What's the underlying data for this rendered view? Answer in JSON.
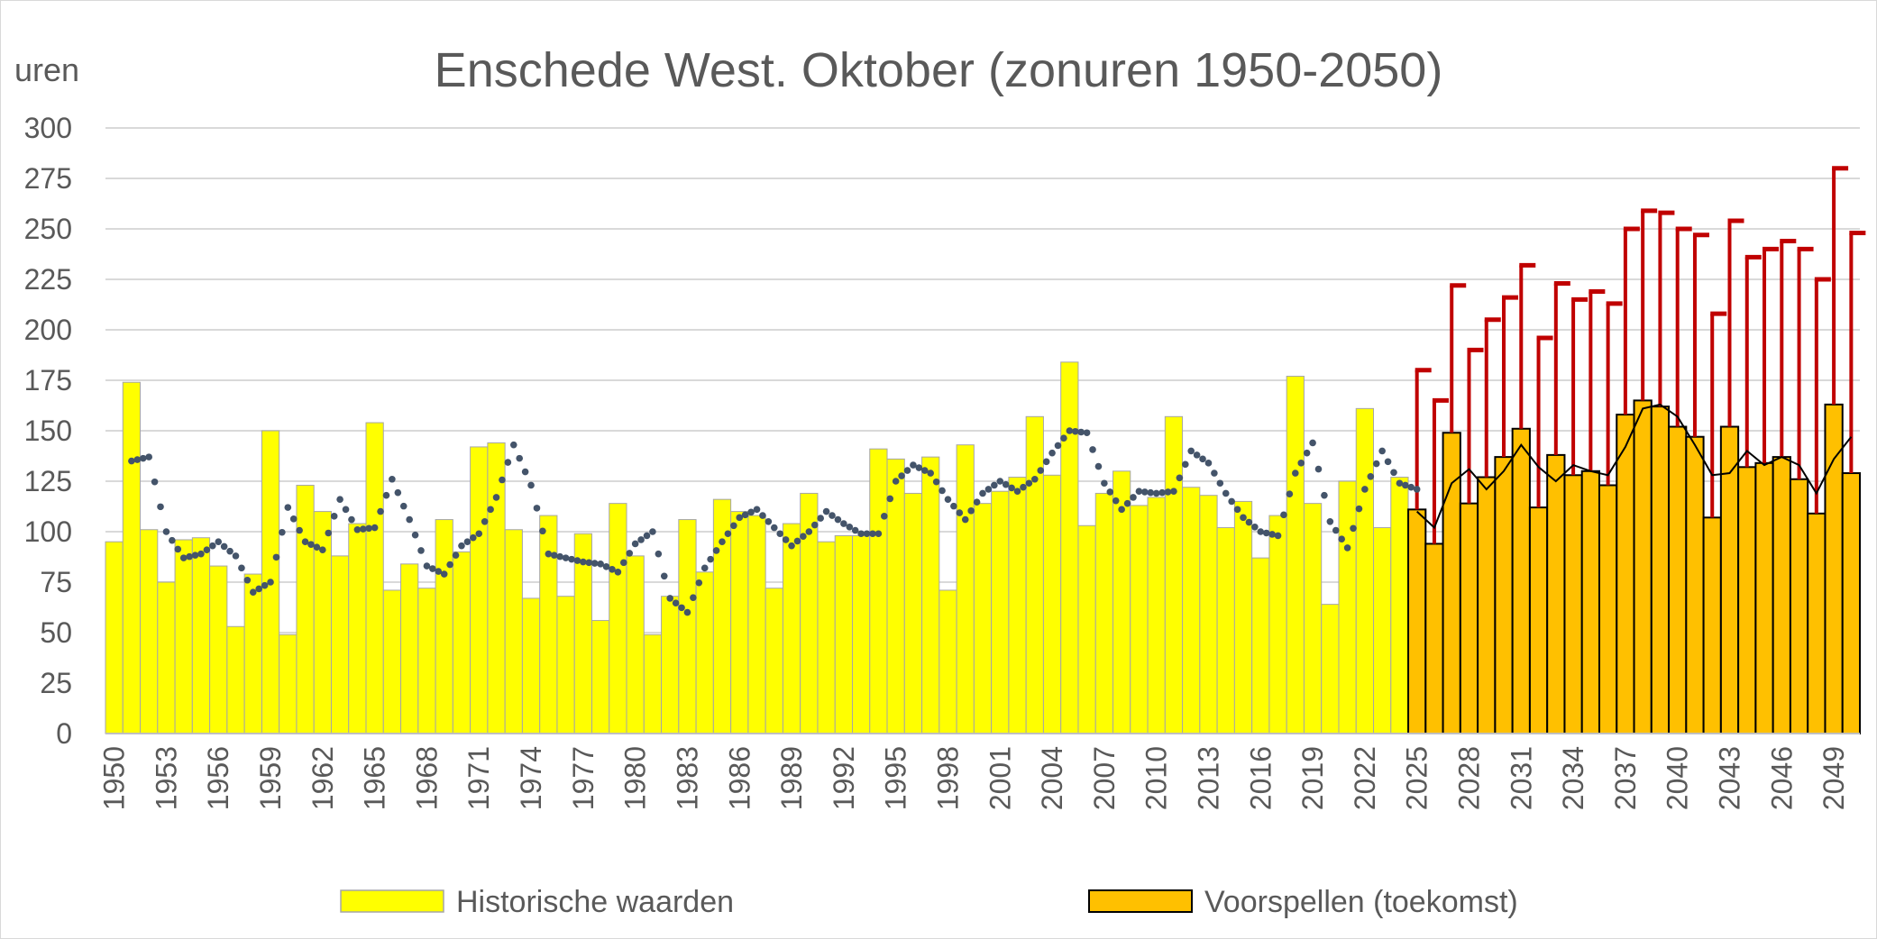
{
  "chart_data": {
    "type": "bar",
    "title": "Enschede West. Oktober (zonuren 1950-2050)",
    "ylabel": "uren",
    "ylim": [
      0,
      300
    ],
    "yticks": [
      0,
      25,
      50,
      75,
      100,
      125,
      150,
      175,
      200,
      225,
      250,
      275,
      300
    ],
    "xtick_labels": [
      "1950",
      "1953",
      "1956",
      "1959",
      "1962",
      "1965",
      "1968",
      "1971",
      "1974",
      "1977",
      "1980",
      "1983",
      "1986",
      "1989",
      "1992",
      "1995",
      "1998",
      "2001",
      "2004",
      "2007",
      "2010",
      "2013",
      "2016",
      "2019",
      "2022",
      "2025",
      "2028",
      "2031",
      "2034",
      "2037",
      "2040",
      "2043",
      "2046",
      "2049"
    ],
    "grid": true,
    "legend_position": "bottom",
    "colors": {
      "historical": "#ffff00",
      "forecast": "#ffc000",
      "error": "#c00000",
      "dots": "#44546a",
      "forecast_line": "#000000",
      "grid": "#d9d9d9",
      "text": "#595959"
    },
    "series": [
      {
        "name": "Historische waarden",
        "x_start": 1950,
        "values": [
          95,
          174,
          101,
          75,
          96,
          97,
          83,
          53,
          79,
          150,
          49,
          123,
          110,
          88,
          104,
          154,
          71,
          84,
          72,
          106,
          90,
          142,
          144,
          101,
          67,
          108,
          68,
          99,
          56,
          114,
          88,
          49,
          68,
          106,
          80,
          116,
          110,
          108,
          72,
          104,
          119,
          95,
          98,
          98,
          141,
          136,
          119,
          137,
          71,
          143,
          114,
          120,
          127,
          157,
          128,
          184,
          103,
          119,
          130,
          113,
          117,
          157,
          122,
          118,
          102,
          115,
          87,
          108,
          177,
          114,
          64,
          125,
          161,
          102,
          127
        ]
      },
      {
        "name": "Voorspellen (toekomst)",
        "x_start": 2025,
        "values": [
          111,
          94,
          149,
          114,
          127,
          137,
          151,
          112,
          138,
          128,
          130,
          123,
          158,
          165,
          162,
          152,
          147,
          107,
          152,
          132,
          134,
          137,
          126,
          109,
          163,
          129
        ],
        "error_upper": [
          180,
          165,
          222,
          190,
          205,
          216,
          232,
          196,
          223,
          215,
          219,
          213,
          250,
          259,
          258,
          250,
          247,
          208,
          254,
          236,
          240,
          244,
          240,
          225,
          280,
          248
        ]
      }
    ],
    "trend_dotted": {
      "x_start": 1951,
      "values": [
        135,
        137,
        100,
        87,
        89,
        95,
        88,
        70,
        75,
        112,
        95,
        91,
        116,
        101,
        102,
        126,
        106,
        83,
        79,
        93,
        99,
        117,
        143,
        123,
        89,
        87,
        85,
        84,
        80,
        94,
        100,
        67,
        60,
        82,
        95,
        107,
        111,
        102,
        93,
        100,
        110,
        104,
        99,
        99,
        125,
        133,
        129,
        116,
        106,
        119,
        125,
        120,
        126,
        139,
        150,
        149,
        124,
        111,
        120,
        119,
        120,
        140,
        134,
        119,
        107,
        100,
        98,
        129,
        144,
        105,
        92,
        121,
        140,
        124,
        121
      ]
    },
    "trend_line": {
      "x_start": 2025,
      "values": [
        110,
        102,
        124,
        131,
        121,
        130,
        143,
        132,
        125,
        133,
        130,
        128,
        142,
        161,
        163,
        157,
        143,
        128,
        129,
        140,
        133,
        137,
        133,
        119,
        136,
        147
      ]
    }
  }
}
